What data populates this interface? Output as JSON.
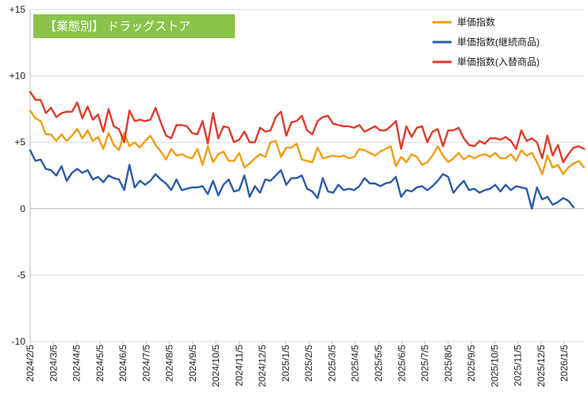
{
  "chart_data": {
    "type": "line",
    "badge": "【業態別】 ドラッグストア",
    "badge_color": "#8BC34A",
    "ylim": [
      -10,
      15
    ],
    "yticks": [
      {
        "value": 15,
        "label": "+15"
      },
      {
        "value": 10,
        "label": "+10"
      },
      {
        "value": 5,
        "label": "+5"
      },
      {
        "value": 0,
        "label": "0"
      },
      {
        "value": -5,
        "label": "-5"
      },
      {
        "value": -10,
        "label": "-10"
      }
    ],
    "grid": "horizontal",
    "legend_position": "top-right",
    "xtick_labels": [
      "2024/2/5",
      "2024/3/5",
      "2024/4/5",
      "2024/5/5",
      "2024/6/5",
      "2024/7/5",
      "2024/8/5",
      "2024/9/5",
      "2024/10/5",
      "2024/11/5",
      "2024/12/5",
      "2025/1/5",
      "2025/2/5",
      "2025/3/5",
      "2025/4/5",
      "2025/5/5",
      "2025/6/5",
      "2025/7/5",
      "2025/8/5",
      "2025/9/5",
      "2025/10/5",
      "2025/11/5",
      "2025/12/5",
      "2026/1/5"
    ],
    "series": [
      {
        "name": "単価指数",
        "color": "#F39C12",
        "values": [
          7.4,
          6.8,
          6.6,
          5.6,
          5.6,
          5.1,
          5.6,
          5.1,
          5.5,
          6.0,
          5.3,
          5.9,
          5.1,
          5.4,
          4.5,
          5.7,
          4.8,
          4.4,
          5.7,
          4.7,
          5.0,
          4.6,
          5.1,
          5.5,
          4.8,
          4.3,
          3.7,
          4.5,
          4.0,
          4.1,
          3.9,
          3.8,
          4.5,
          3.3,
          4.7,
          3.5,
          4.1,
          4.3,
          3.6,
          3.6,
          4.2,
          3.1,
          3.4,
          3.8,
          4.1,
          3.9,
          5.0,
          5.1,
          3.9,
          4.6,
          4.6,
          4.9,
          3.7,
          3.6,
          3.5,
          4.6,
          3.8,
          3.9,
          4.0,
          3.9,
          4.0,
          3.8,
          3.9,
          4.5,
          4.4,
          4.2,
          4.0,
          4.3,
          4.5,
          4.7,
          3.2,
          3.9,
          3.5,
          4.1,
          3.9,
          3.3,
          3.5,
          4.0,
          4.7,
          4.0,
          3.5,
          3.8,
          4.2,
          3.7,
          4.0,
          3.8,
          4.0,
          4.1,
          3.9,
          4.2,
          3.8,
          3.8,
          4.1,
          3.6,
          4.4,
          4.0,
          4.2,
          3.5,
          2.6,
          4.0,
          3.1,
          3.3,
          2.6,
          3.1,
          3.4,
          3.6,
          3.1
        ]
      },
      {
        "name": "単価指数(継続商品)",
        "color": "#2A5CAA",
        "values": [
          4.4,
          3.6,
          3.7,
          3.0,
          2.9,
          2.5,
          3.2,
          2.1,
          2.7,
          3.0,
          2.7,
          2.9,
          2.2,
          2.4,
          2.0,
          2.5,
          2.3,
          2.2,
          1.4,
          3.3,
          1.6,
          2.1,
          1.8,
          2.1,
          2.6,
          2.2,
          1.9,
          1.4,
          2.2,
          1.4,
          1.5,
          1.6,
          1.6,
          1.7,
          1.1,
          2.1,
          1.0,
          1.8,
          2.2,
          1.3,
          1.4,
          2.5,
          0.9,
          1.7,
          1.2,
          2.2,
          2.1,
          2.5,
          2.9,
          1.8,
          2.3,
          2.3,
          2.5,
          1.5,
          1.3,
          0.8,
          2.3,
          1.3,
          1.2,
          1.8,
          1.4,
          1.5,
          1.4,
          1.7,
          2.3,
          1.9,
          1.9,
          1.7,
          1.9,
          2.0,
          2.4,
          0.9,
          1.4,
          1.3,
          1.6,
          1.7,
          1.4,
          1.7,
          2.1,
          2.6,
          2.4,
          1.2,
          1.7,
          2.1,
          1.4,
          1.5,
          1.2,
          1.4,
          1.5,
          1.8,
          1.3,
          1.8,
          1.4,
          1.7,
          1.6,
          1.5,
          0.0,
          1.6,
          0.7,
          0.9,
          0.3,
          0.5,
          0.8,
          0.6,
          0.1
        ]
      },
      {
        "name": "単価指数(入替商品)",
        "color": "#E23B2A",
        "values": [
          8.8,
          8.2,
          8.2,
          7.2,
          7.6,
          6.9,
          7.2,
          7.3,
          7.3,
          8.0,
          6.8,
          7.7,
          6.7,
          7.1,
          5.8,
          7.5,
          6.2,
          6.0,
          5.0,
          7.4,
          6.6,
          6.7,
          6.6,
          6.7,
          7.6,
          6.5,
          5.5,
          5.3,
          6.3,
          6.3,
          6.2,
          5.7,
          5.6,
          6.6,
          4.9,
          7.2,
          5.3,
          6.2,
          6.1,
          5.0,
          5.2,
          5.8,
          5.0,
          5.0,
          6.1,
          5.8,
          5.9,
          6.9,
          7.3,
          5.5,
          6.5,
          6.6,
          7.0,
          5.9,
          5.6,
          6.6,
          6.9,
          7.0,
          6.4,
          6.3,
          6.2,
          6.2,
          6.1,
          6.3,
          5.8,
          6.0,
          6.2,
          5.9,
          5.9,
          6.2,
          6.6,
          4.5,
          6.2,
          5.4,
          6.1,
          6.2,
          5.0,
          5.8,
          6.0,
          4.7,
          5.9,
          5.9,
          6.1,
          5.3,
          4.8,
          4.7,
          5.1,
          4.9,
          5.3,
          5.3,
          5.2,
          5.4,
          5.1,
          4.5,
          5.9,
          5.1,
          5.3,
          5.0,
          3.8,
          5.5,
          4.0,
          4.8,
          3.5,
          4.1,
          4.6,
          4.7,
          4.5
        ]
      }
    ]
  }
}
